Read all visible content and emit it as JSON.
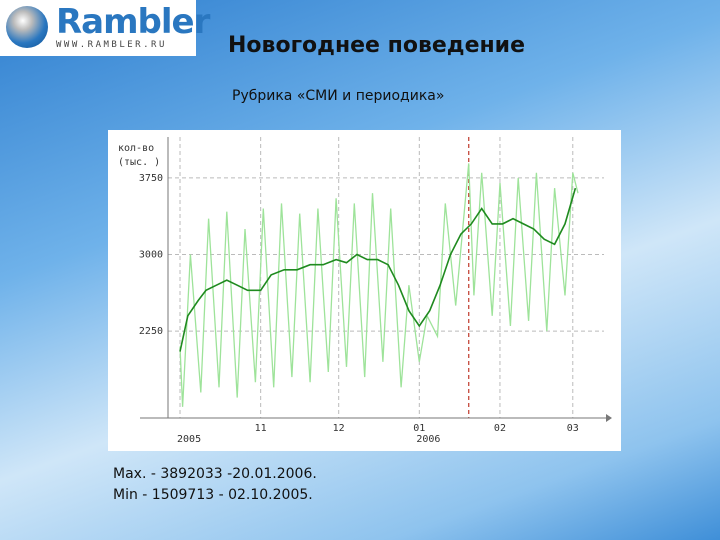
{
  "logo": {
    "name": "Rambler",
    "url": "WWW.RAMBLER.RU"
  },
  "chart_data": {
    "type": "line",
    "title": "Новогоднее поведение",
    "subtitle": "Рубрика «СМИ и периодика»",
    "ylabel": [
      "кол-во",
      "(тыс. )"
    ],
    "annotations": [
      "Max. - 3892033 -20.01.2006.",
      "Min - 1509713 - 02.10.2005."
    ],
    "xlim": [
      -15,
      163
    ],
    "ylim": [
      1400,
      4150
    ],
    "xticks": [
      {
        "value": 31,
        "label": "11"
      },
      {
        "value": 61,
        "label": "12"
      },
      {
        "value": 92,
        "label": "01"
      },
      {
        "value": 123,
        "label": "02"
      },
      {
        "value": 151,
        "label": "03"
      }
    ],
    "year_ticks": [
      {
        "value": 0,
        "label": "2005"
      },
      {
        "value": 92,
        "label": "2006"
      }
    ],
    "yticks": [
      2250,
      3000,
      3750
    ],
    "grid": true,
    "max_marker_x": 111,
    "max_marker_color": "#c0392b",
    "series": [
      {
        "color": "#9ee39a",
        "x": [
          0,
          1,
          4,
          8,
          11,
          15,
          18,
          22,
          25,
          29,
          32,
          36,
          39,
          43,
          46,
          50,
          53,
          57,
          60,
          64,
          67,
          71,
          74,
          78,
          81,
          85,
          88,
          92,
          95,
          99,
          102,
          106,
          111,
          113,
          116,
          120,
          123,
          127,
          130,
          134,
          137,
          141,
          144,
          148,
          151,
          153
        ],
        "values": [
          2100,
          1510,
          3000,
          1650,
          3350,
          1700,
          3420,
          1600,
          3250,
          1750,
          3450,
          1700,
          3500,
          1800,
          3400,
          1750,
          3450,
          1850,
          3550,
          1900,
          3500,
          1800,
          3600,
          1950,
          3450,
          1700,
          2700,
          1950,
          2400,
          2200,
          3500,
          2500,
          3892,
          2600,
          3800,
          2400,
          3700,
          2300,
          3750,
          2350,
          3800,
          2250,
          3650,
          2600,
          3800,
          3600
        ]
      },
      {
        "color": "#1f8a1f",
        "x": [
          0,
          3,
          7,
          10,
          14,
          18,
          22,
          26,
          31,
          35,
          40,
          45,
          50,
          55,
          60,
          64,
          68,
          72,
          76,
          80,
          84,
          88,
          92,
          96,
          100,
          104,
          108,
          112,
          116,
          120,
          124,
          128,
          132,
          136,
          140,
          144,
          148,
          152
        ],
        "values": [
          2050,
          2400,
          2550,
          2650,
          2700,
          2750,
          2700,
          2650,
          2650,
          2800,
          2850,
          2850,
          2900,
          2900,
          2950,
          2920,
          3000,
          2950,
          2950,
          2900,
          2700,
          2450,
          2300,
          2450,
          2700,
          3000,
          3200,
          3300,
          3450,
          3300,
          3300,
          3350,
          3300,
          3250,
          3150,
          3100,
          3300,
          3650
        ]
      }
    ]
  }
}
